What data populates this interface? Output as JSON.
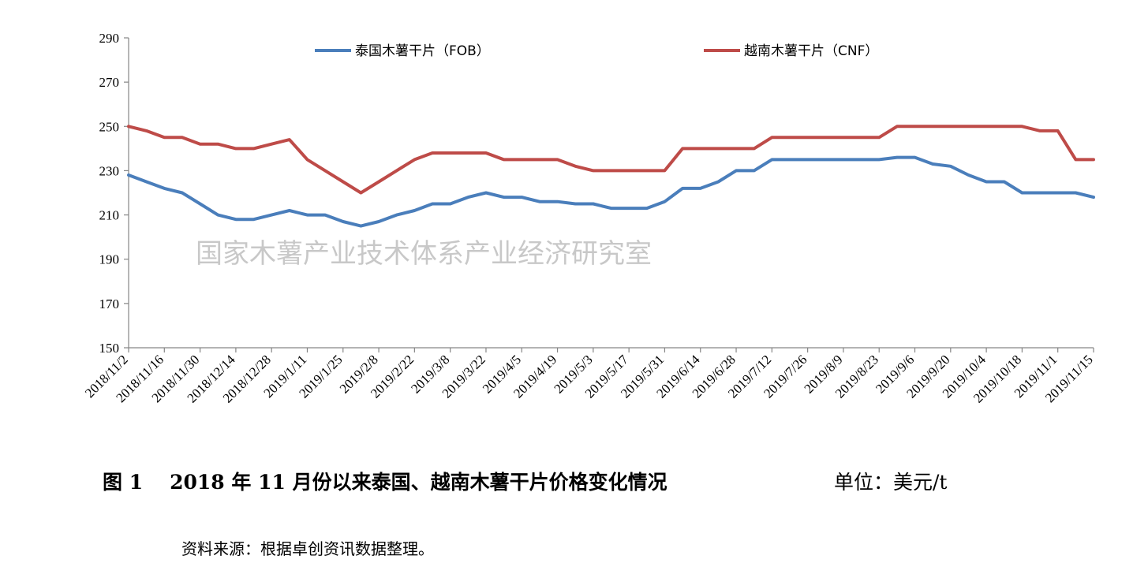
{
  "chart_data": {
    "type": "line",
    "title": "",
    "xlabel": "",
    "ylabel": "",
    "ylim": [
      150,
      290
    ],
    "yticks": [
      150,
      170,
      190,
      210,
      230,
      250,
      270,
      290
    ],
    "grid": false,
    "legend_position": "top",
    "x_tick_labels": [
      "2018/11/2",
      "2018/11/16",
      "2018/11/30",
      "2018/12/14",
      "2018/12/28",
      "2019/1/11",
      "2019/1/25",
      "2019/2/8",
      "2019/2/22",
      "2019/3/8",
      "2019/3/22",
      "2019/4/5",
      "2019/4/19",
      "2019/5/3",
      "2019/5/17",
      "2019/5/31",
      "2019/6/14",
      "2019/6/28",
      "2019/7/12",
      "2019/7/26",
      "2019/8/9",
      "2019/8/23",
      "2019/9/6",
      "2019/9/20",
      "2019/10/4",
      "2019/10/18",
      "2019/11/1",
      "2019/11/15"
    ],
    "x": [
      "2018/11/2",
      "2018/11/9",
      "2018/11/16",
      "2018/11/23",
      "2018/11/30",
      "2018/12/7",
      "2018/12/14",
      "2018/12/21",
      "2018/12/28",
      "2019/1/4",
      "2019/1/11",
      "2019/1/18",
      "2019/1/25",
      "2019/2/1",
      "2019/2/8",
      "2019/2/15",
      "2019/2/22",
      "2019/3/1",
      "2019/3/8",
      "2019/3/15",
      "2019/3/22",
      "2019/3/29",
      "2019/4/5",
      "2019/4/12",
      "2019/4/19",
      "2019/4/26",
      "2019/5/3",
      "2019/5/10",
      "2019/5/17",
      "2019/5/24",
      "2019/5/31",
      "2019/6/7",
      "2019/6/14",
      "2019/6/21",
      "2019/6/28",
      "2019/7/5",
      "2019/7/12",
      "2019/7/19",
      "2019/7/26",
      "2019/8/2",
      "2019/8/9",
      "2019/8/16",
      "2019/8/23",
      "2019/8/30",
      "2019/9/6",
      "2019/9/13",
      "2019/9/20",
      "2019/9/27",
      "2019/10/4",
      "2019/10/11",
      "2019/10/18",
      "2019/10/25",
      "2019/11/1",
      "2019/11/8",
      "2019/11/15"
    ],
    "series": [
      {
        "name": "泰国木薯干片（FOB）",
        "color": "#4a7ebb",
        "values": [
          228,
          225,
          222,
          220,
          215,
          210,
          208,
          208,
          210,
          212,
          210,
          210,
          207,
          205,
          207,
          210,
          212,
          215,
          215,
          218,
          220,
          218,
          218,
          216,
          216,
          215,
          215,
          213,
          213,
          213,
          216,
          222,
          222,
          225,
          230,
          230,
          235,
          235,
          235,
          235,
          235,
          235,
          235,
          236,
          236,
          233,
          232,
          228,
          225,
          225,
          220,
          220,
          220,
          220,
          218
        ]
      },
      {
        "name": "越南木薯干片（CNF）",
        "color": "#be4b48",
        "values": [
          250,
          248,
          245,
          245,
          242,
          242,
          240,
          240,
          242,
          244,
          235,
          230,
          225,
          220,
          225,
          230,
          235,
          238,
          238,
          238,
          238,
          235,
          235,
          235,
          235,
          232,
          230,
          230,
          230,
          230,
          230,
          240,
          240,
          240,
          240,
          240,
          245,
          245,
          245,
          245,
          245,
          245,
          245,
          250,
          250,
          250,
          250,
          250,
          250,
          250,
          250,
          248,
          248,
          235,
          235
        ]
      }
    ]
  },
  "watermark": "国家木薯产业技术体系产业经济研究室",
  "caption": {
    "figure_no": "图 1",
    "title": "2018 年 11 月份以来泰国、越南木薯干片价格变化情况",
    "unit": "单位：美元/t"
  },
  "source": "资料来源：根据卓创资讯数据整理。"
}
